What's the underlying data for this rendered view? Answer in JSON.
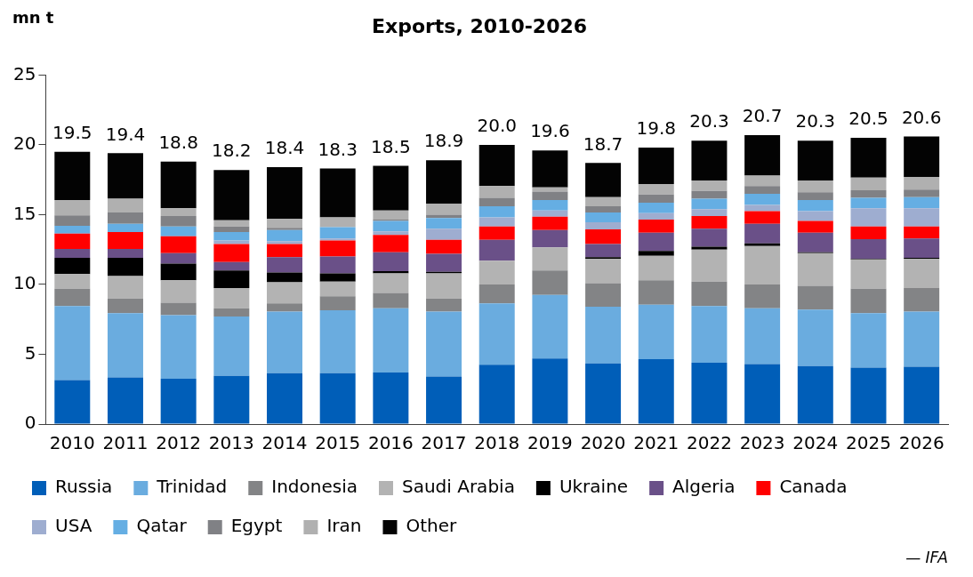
{
  "chart_data": {
    "type": "bar",
    "title": "Exports, 2010-2026",
    "ylabel": "mn t",
    "stacked": true,
    "categories": [
      "2010",
      "2011",
      "2012",
      "2013",
      "2014",
      "2015",
      "2016",
      "2017",
      "2018",
      "2019",
      "2020",
      "2021",
      "2022",
      "2023",
      "2024",
      "2025",
      "2026"
    ],
    "series": [
      {
        "name": "Russia",
        "color": "#005eb8",
        "values": [
          3.15,
          3.35,
          3.25,
          3.45,
          3.65,
          3.65,
          3.7,
          3.4,
          4.25,
          4.7,
          4.35,
          4.65,
          4.4,
          4.3,
          4.15,
          4.05,
          4.1
        ]
      },
      {
        "name": "Trinidad",
        "color": "#6aacdf",
        "values": [
          5.3,
          4.6,
          4.55,
          4.25,
          4.4,
          4.5,
          4.6,
          4.65,
          4.4,
          4.55,
          4.05,
          3.9,
          4.05,
          4.0,
          4.05,
          3.9,
          3.95
        ]
      },
      {
        "name": "Indonesia",
        "color": "#838486",
        "values": [
          1.25,
          1.05,
          0.9,
          0.6,
          0.6,
          1.0,
          1.1,
          0.95,
          1.35,
          1.75,
          1.7,
          1.75,
          1.75,
          1.7,
          1.7,
          1.75,
          1.7
        ]
      },
      {
        "name": "Saudi Arabia",
        "color": "#b3b3b3",
        "values": [
          1.05,
          1.6,
          1.6,
          1.45,
          1.5,
          1.05,
          1.4,
          1.8,
          1.7,
          1.65,
          1.75,
          1.75,
          2.3,
          2.75,
          2.35,
          2.1,
          2.1
        ]
      },
      {
        "name": "Ukraine",
        "color": "#000000",
        "values": [
          1.15,
          1.3,
          1.2,
          1.25,
          0.7,
          0.6,
          0.15,
          0.1,
          0,
          0,
          0.1,
          0.35,
          0.2,
          0.2,
          0.05,
          0.05,
          0.05
        ]
      },
      {
        "name": "Algeria",
        "color": "#6a5088",
        "values": [
          0.65,
          0.65,
          0.75,
          0.6,
          1.1,
          1.2,
          1.35,
          1.3,
          1.5,
          1.25,
          0.95,
          1.3,
          1.3,
          1.4,
          1.4,
          1.4,
          1.4
        ]
      },
      {
        "name": "Canada",
        "color": "#ff0000",
        "values": [
          1.1,
          1.2,
          1.2,
          1.3,
          0.95,
          1.15,
          1.25,
          1.0,
          0.95,
          0.95,
          1.05,
          0.95,
          0.9,
          0.9,
          0.85,
          0.9,
          0.85
        ]
      },
      {
        "name": "USA",
        "color": "#9eadd0",
        "values": [
          0,
          0,
          0,
          0.25,
          0.2,
          0.15,
          0.25,
          0.8,
          0.65,
          0.45,
          0.5,
          0.45,
          0.5,
          0.45,
          0.7,
          1.3,
          1.3
        ]
      },
      {
        "name": "Qatar",
        "color": "#65aee3",
        "values": [
          0.55,
          0.6,
          0.7,
          0.6,
          0.8,
          0.8,
          0.75,
          0.75,
          0.8,
          0.75,
          0.7,
          0.75,
          0.75,
          0.8,
          0.8,
          0.75,
          0.8
        ]
      },
      {
        "name": "Egypt",
        "color": "#808185",
        "values": [
          0.75,
          0.8,
          0.75,
          0.4,
          0.15,
          0,
          0.1,
          0.25,
          0.6,
          0.6,
          0.45,
          0.6,
          0.55,
          0.55,
          0.55,
          0.55,
          0.55
        ]
      },
      {
        "name": "Iran",
        "color": "#b0b0b0",
        "values": [
          1.1,
          1.0,
          0.55,
          0.45,
          0.65,
          0.7,
          0.65,
          0.8,
          0.85,
          0.3,
          0.65,
          0.75,
          0.75,
          0.75,
          0.85,
          0.9,
          0.9
        ]
      },
      {
        "name": "Other",
        "color": "#030303",
        "values": [
          3.45,
          3.25,
          3.35,
          3.6,
          3.7,
          3.5,
          3.2,
          3.1,
          2.95,
          2.65,
          2.45,
          2.6,
          2.85,
          2.9,
          2.85,
          2.85,
          2.9
        ]
      }
    ],
    "totals": [
      "19.5",
      "19.4",
      "18.8",
      "18.2",
      "18.4",
      "18.3",
      "18.5",
      "18.9",
      "20.0",
      "19.6",
      "18.7",
      "19.8",
      "20.3",
      "20.7",
      "20.3",
      "20.5",
      "20.6"
    ],
    "ylim": [
      0,
      25
    ],
    "yticks": [
      0,
      5,
      10,
      15,
      20,
      25
    ],
    "grid": false,
    "legend": "bottom",
    "annotations": [
      "— IFA"
    ]
  }
}
